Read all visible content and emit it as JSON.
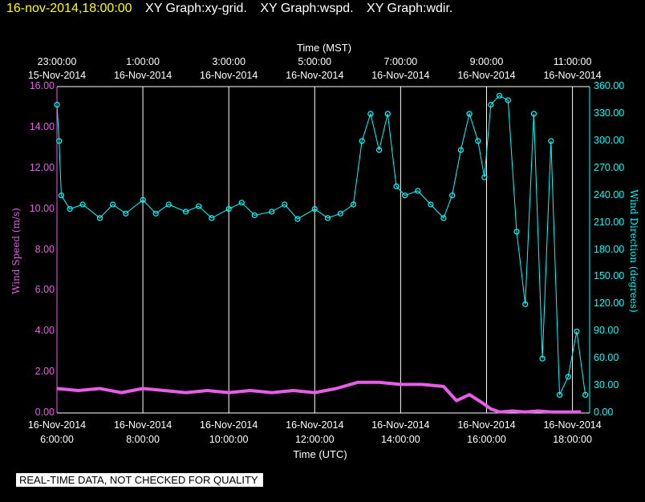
{
  "header": {
    "timestamp": "16-nov-2014,18:00:00",
    "graphs": [
      "XY Graph:xy-grid.",
      "XY Graph:wspd.",
      "XY Graph:wdir."
    ]
  },
  "colors": {
    "speed": "#e55ee5",
    "direction": "#00ffff",
    "grid": "#ffffff",
    "background": "#000000"
  },
  "footer": {
    "banner": "REAL-TIME DATA, NOT CHECKED FOR QUALITY"
  },
  "chart_data": {
    "type": "scatter",
    "top_axis": {
      "title": "Time (MST)",
      "ticks": [
        {
          "time": "23:00:00",
          "date": "15-Nov-2014"
        },
        {
          "time": "1:00:00",
          "date": "16-Nov-2014"
        },
        {
          "time": "3:00:00",
          "date": "16-Nov-2014"
        },
        {
          "time": "5:00:00",
          "date": "16-Nov-2014"
        },
        {
          "time": "7:00:00",
          "date": "16-Nov-2014"
        },
        {
          "time": "9:00:00",
          "date": "16-Nov-2014"
        },
        {
          "time": "11:00:00",
          "date": "16-Nov-2014"
        }
      ]
    },
    "bottom_axis": {
      "title": "Time (UTC)",
      "ticks": [
        {
          "date": "16-Nov-2014",
          "time": "6:00:00"
        },
        {
          "date": "16-Nov-2014",
          "time": "8:00:00"
        },
        {
          "date": "16-Nov-2014",
          "time": "10:00:00"
        },
        {
          "date": "16-Nov-2014",
          "time": "12:00:00"
        },
        {
          "date": "16-Nov-2014",
          "time": "14:00:00"
        },
        {
          "date": "16-Nov-2014",
          "time": "16:00:00"
        },
        {
          "date": "16-Nov-2014",
          "time": "18:00:00"
        }
      ]
    },
    "left_axis": {
      "label": "Wind Speed (m/s)",
      "ylim": [
        0,
        16
      ],
      "ticks": [
        "0.00",
        "2.00",
        "4.00",
        "6.00",
        "8.00",
        "10.00",
        "12.00",
        "14.00",
        "16.00"
      ]
    },
    "right_axis": {
      "label": "Wind Direction (degrees)",
      "ylim": [
        0,
        360
      ],
      "ticks": [
        "0.00",
        "30.00",
        "60.00",
        "90.00",
        "120.00",
        "150.00",
        "180.00",
        "210.00",
        "240.00",
        "270.00",
        "300.00",
        "330.00",
        "360.00"
      ]
    },
    "xlim_utc_hours": [
      6.0,
      18.4
    ],
    "grid": "vertical lines at each bottom tick",
    "series": [
      {
        "axis": "left",
        "style": "line",
        "points": [
          [
            6.0,
            1.2
          ],
          [
            6.5,
            1.1
          ],
          [
            7.0,
            1.2
          ],
          [
            7.5,
            1.0
          ],
          [
            8.0,
            1.2
          ],
          [
            8.5,
            1.1
          ],
          [
            9.0,
            1.0
          ],
          [
            9.5,
            1.1
          ],
          [
            10.0,
            1.0
          ],
          [
            10.5,
            1.1
          ],
          [
            11.0,
            1.0
          ],
          [
            11.5,
            1.1
          ],
          [
            12.0,
            1.0
          ],
          [
            12.5,
            1.2
          ],
          [
            13.0,
            1.5
          ],
          [
            13.5,
            1.5
          ],
          [
            14.0,
            1.4
          ],
          [
            14.5,
            1.4
          ],
          [
            15.0,
            1.3
          ],
          [
            15.3,
            0.6
          ],
          [
            15.6,
            0.9
          ],
          [
            15.9,
            0.5
          ],
          [
            16.1,
            0.2
          ],
          [
            16.3,
            0.05
          ],
          [
            16.6,
            0.1
          ],
          [
            16.9,
            0.05
          ],
          [
            17.2,
            0.1
          ],
          [
            17.5,
            0.05
          ],
          [
            17.8,
            0.05
          ],
          [
            18.2,
            0.05
          ]
        ]
      },
      {
        "axis": "right",
        "style": "markers",
        "points": [
          [
            6.0,
            340
          ],
          [
            6.05,
            300
          ],
          [
            6.1,
            240
          ],
          [
            6.3,
            225
          ],
          [
            6.6,
            230
          ],
          [
            7.0,
            215
          ],
          [
            7.3,
            230
          ],
          [
            7.6,
            220
          ],
          [
            8.0,
            235
          ],
          [
            8.3,
            220
          ],
          [
            8.6,
            230
          ],
          [
            9.0,
            222
          ],
          [
            9.3,
            228
          ],
          [
            9.6,
            215
          ],
          [
            10.0,
            225
          ],
          [
            10.3,
            232
          ],
          [
            10.6,
            218
          ],
          [
            11.0,
            222
          ],
          [
            11.3,
            230
          ],
          [
            11.6,
            214
          ],
          [
            12.0,
            225
          ],
          [
            12.3,
            215
          ],
          [
            12.6,
            220
          ],
          [
            12.9,
            230
          ],
          [
            13.1,
            300
          ],
          [
            13.3,
            330
          ],
          [
            13.5,
            290
          ],
          [
            13.7,
            330
          ],
          [
            13.9,
            250
          ],
          [
            14.1,
            240
          ],
          [
            14.4,
            245
          ],
          [
            14.7,
            230
          ],
          [
            15.0,
            215
          ],
          [
            15.2,
            240
          ],
          [
            15.4,
            290
          ],
          [
            15.6,
            330
          ],
          [
            15.8,
            300
          ],
          [
            15.95,
            260
          ],
          [
            16.1,
            340
          ],
          [
            16.3,
            350
          ],
          [
            16.5,
            345
          ],
          [
            16.7,
            200
          ],
          [
            16.9,
            120
          ],
          [
            17.1,
            330
          ],
          [
            17.3,
            60
          ],
          [
            17.5,
            300
          ],
          [
            17.7,
            20
          ],
          [
            17.9,
            40
          ],
          [
            18.1,
            90
          ],
          [
            18.3,
            20
          ]
        ]
      }
    ]
  }
}
